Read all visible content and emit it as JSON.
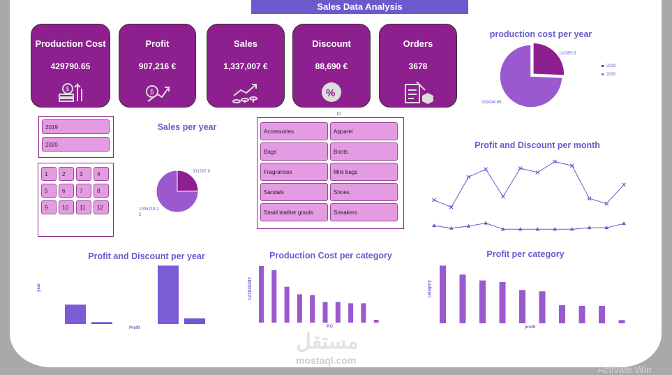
{
  "header": {
    "title": "Sales Data Analysis"
  },
  "kpis": [
    {
      "title": "Production Cost",
      "value": "429790.65",
      "icon": "money-stack-icon"
    },
    {
      "title": "Profit",
      "value": "907,216 €",
      "icon": "money-growth-icon"
    },
    {
      "title": "Sales",
      "value": "1,337,007 €",
      "icon": "coin-chart-icon"
    },
    {
      "title": "Discount",
      "value": "88,690 €",
      "icon": "percent-badge-icon"
    },
    {
      "title": "Orders",
      "value": "3678",
      "icon": "clipboard-box-icon"
    }
  ],
  "year_slicer": [
    "2019",
    "2020"
  ],
  "month_slicer": [
    "1",
    "2",
    "3",
    "4",
    "5",
    "6",
    "7",
    "8",
    "9",
    "10",
    "11",
    "12"
  ],
  "category_slicer": [
    "Accessories",
    "Apparel",
    "Bags",
    "Boots",
    "Fragrances",
    "Mini bags",
    "Sandals",
    "Shoes",
    "Small leather goods",
    "Sneakers"
  ],
  "colors": {
    "purple": "#8e1f8f",
    "accent": "#6a5acd",
    "light": "#e59be4",
    "bar": "#7b5cd6",
    "barcat": "#9b59d0"
  },
  "charts": {
    "prod_cost_year": {
      "type": "pie",
      "title": "production cost per year",
      "slices": [
        {
          "name": "2019",
          "value": 110355.8,
          "label": "110355.8"
        },
        {
          "name": "2020",
          "value": 319434.85,
          "label": "319434.85"
        }
      ],
      "legend": [
        "2019",
        "2020"
      ]
    },
    "sales_year": {
      "type": "pie",
      "title": "Sales per year",
      "slices": [
        {
          "value": 331787.8,
          "label": "331787.8"
        },
        {
          "value": 1005219.25,
          "label": "1005219.2\n5"
        }
      ]
    },
    "profit_discount_month": {
      "type": "line",
      "title": "Profit and Discount per month",
      "series": [
        {
          "values": [
            58000,
            44000,
            103000,
            118000,
            65000,
            120000,
            112000,
            133000,
            125000,
            61000,
            51000,
            88000
          ]
        },
        {
          "values": [
            8000,
            3000,
            7000,
            13000,
            1000,
            1000,
            1000,
            1000,
            1000,
            4000,
            4000,
            12000
          ]
        }
      ],
      "ylim": [
        0,
        150000
      ]
    },
    "profit_discount_year": {
      "type": "bar",
      "title": "Profit and Discount per year",
      "xlabel": "Profit",
      "ylabel": "year",
      "groups": [
        {
          "values": [
            226000,
            22000
          ]
        },
        {
          "values": [
            681000,
            66000
          ]
        }
      ],
      "ylim": [
        0,
        700000
      ]
    },
    "prod_cost_category": {
      "type": "bar",
      "title": "Production Cost per category",
      "xlabel": "P.C",
      "ylabel": "CATEGORY",
      "values": [
        82000,
        76000,
        52000,
        41000,
        40000,
        30000,
        30000,
        28000,
        28000,
        4000
      ],
      "ylim": [
        0,
        85000
      ]
    },
    "profit_category": {
      "type": "bar",
      "title": "Profit per category",
      "xlabel": "profit",
      "ylabel": "category",
      "values": [
        175000,
        148000,
        130000,
        125000,
        101000,
        97000,
        55000,
        53000,
        53000,
        10000
      ],
      "ylim": [
        0,
        180000
      ]
    }
  },
  "watermark": {
    "activate": "Activate Win",
    "logo_ar": "مستقل",
    "logo_en": "mostaql.com"
  }
}
